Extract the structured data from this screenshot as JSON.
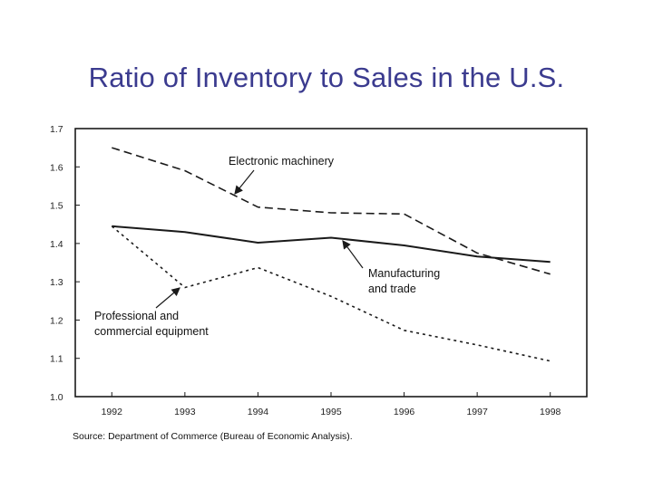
{
  "slide": {
    "title": "Ratio of Inventory to Sales in the U.S.",
    "source": "Source:  Department of Commerce (Bureau of Economic Analysis)."
  },
  "chart_data": {
    "type": "line",
    "title": "",
    "xlabel": "",
    "ylabel": "",
    "x": [
      1992,
      1993,
      1994,
      1995,
      1996,
      1997,
      1998
    ],
    "xlim": [
      1991.5,
      1998.5
    ],
    "ylim": [
      1.0,
      1.7
    ],
    "y_ticks": [
      "1.0",
      "1.1",
      "1.2",
      "1.3",
      "1.4",
      "1.5",
      "1.6",
      "1.7"
    ],
    "x_ticks": [
      "1992",
      "1993",
      "1994",
      "1995",
      "1996",
      "1997",
      "1998"
    ],
    "grid": false,
    "series": [
      {
        "name": "Electronic machinery",
        "style": "dashed",
        "values": [
          1.65,
          1.59,
          1.495,
          1.48,
          1.477,
          1.375,
          1.32
        ]
      },
      {
        "name": "Manufacturing and trade",
        "style": "solid",
        "values": [
          1.445,
          1.43,
          1.402,
          1.415,
          1.395,
          1.366,
          1.352
        ]
      },
      {
        "name": "Professional and commercial equipment",
        "style": "dotted",
        "values": [
          1.445,
          1.285,
          1.337,
          1.262,
          1.173,
          1.135,
          1.093
        ]
      }
    ],
    "annotations": [
      {
        "lines": [
          "Electronic machinery"
        ],
        "series": 0
      },
      {
        "lines": [
          "Manufacturing",
          "and trade"
        ],
        "series": 1
      },
      {
        "lines": [
          "Professional and",
          "commercial equipment"
        ],
        "series": 2
      }
    ],
    "colors": {
      "line": "#1a1a1a",
      "title": "#3b3b8f"
    }
  }
}
